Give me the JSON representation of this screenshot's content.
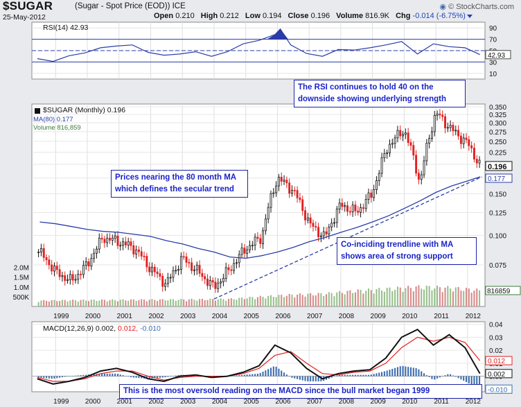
{
  "header": {
    "symbol": "$SUGAR",
    "description": "(Sugar - Spot Price (EOD)) ICE",
    "date": "25-May-2012",
    "brand": "© StockCharts.com",
    "open_label": "Open",
    "open": "0.210",
    "high_label": "High",
    "high": "0.212",
    "low_label": "Low",
    "low": "0.194",
    "close_label": "Close",
    "close": "0.196",
    "volume_label": "Volume",
    "volume": "816.9K",
    "chg_label": "Chg",
    "chg": "-0.014 (-6.75%)"
  },
  "legends": {
    "rsi": "RSI(14) 42.93",
    "price": "$SUGAR (Monthly) 0.196",
    "ma": "MA(80) 0.177",
    "volume": "Volume 816,859",
    "macd_name": "MACD(12,26,9)",
    "macd_v1": "0.002,",
    "macd_v2": "0.012,",
    "macd_v3": "-0.010"
  },
  "annotations": {
    "rsi_note": "The RSI continues to hold 40 on the downside showing underlying strength",
    "ma_note": "Prices nearing the 80 month MA which defines the secular trend",
    "support_note": "Co-inciding trendline with MA shows area of strong support",
    "macd_note": "This is the most oversold reading on the MACD since the bull market began 1999"
  },
  "colors": {
    "up": "#111111",
    "down": "#e02020",
    "ma": "#2a3ca8",
    "rsi_fill": "#2a3ca8",
    "vol_up": "#98c08c",
    "vol_down": "#d88a8a",
    "macd": "#111111",
    "signal": "#e02020",
    "hist": "#3b6db0",
    "note_border": "#1a23a8"
  },
  "chart_data": [
    {
      "type": "line",
      "name": "RSI(14)",
      "ylim": [
        0,
        100
      ],
      "yticks": [
        "90",
        "70",
        "50",
        "30",
        "10"
      ],
      "reference_lines": [
        70,
        50,
        30
      ],
      "last_value_label": "42.93",
      "x": [
        1998.42,
        1998.92,
        1999.42,
        1999.92,
        2000.42,
        2000.92,
        2001.42,
        2001.92,
        2002.42,
        2002.92,
        2003.42,
        2003.92,
        2004.42,
        2004.92,
        2005.42,
        2005.92,
        2006.09,
        2006.42,
        2006.92,
        2007.42,
        2007.92,
        2008.42,
        2008.92,
        2009.42,
        2009.92,
        2010.42,
        2010.92,
        2011.42,
        2011.92,
        2012.39
      ],
      "values": [
        36,
        31,
        41,
        46,
        55,
        58,
        60,
        47,
        42,
        44,
        48,
        40,
        48,
        62,
        68,
        78,
        88,
        60,
        45,
        40,
        52,
        51,
        55,
        60,
        66,
        44,
        62,
        57,
        55,
        43
      ]
    },
    {
      "type": "candlestick",
      "name": "$SUGAR (Monthly)",
      "scale": "log",
      "ylim": [
        0.05,
        0.36
      ],
      "yticks": [
        "0.350",
        "0.325",
        "0.300",
        "0.275",
        "0.250",
        "0.225",
        "0.200",
        "0.175",
        "0.150",
        "0.125",
        "0.100",
        "0.075"
      ],
      "last_close_label": "0.196",
      "ma_last_label": "0.177",
      "x": [
        1998.5,
        1999.0,
        1999.5,
        2000.0,
        2000.5,
        2001.0,
        2001.5,
        2002.0,
        2002.5,
        2003.0,
        2003.5,
        2004.0,
        2004.5,
        2005.0,
        2005.5,
        2006.0,
        2006.5,
        2007.0,
        2007.5,
        2008.0,
        2008.5,
        2009.0,
        2009.5,
        2010.0,
        2010.5,
        2011.0,
        2011.5,
        2012.0,
        2012.4
      ],
      "close": [
        0.085,
        0.07,
        0.064,
        0.075,
        0.098,
        0.094,
        0.088,
        0.072,
        0.062,
        0.08,
        0.07,
        0.06,
        0.072,
        0.088,
        0.098,
        0.175,
        0.155,
        0.112,
        0.098,
        0.135,
        0.125,
        0.15,
        0.24,
        0.28,
        0.165,
        0.33,
        0.28,
        0.245,
        0.196
      ],
      "ma80": [
        0.114,
        0.112,
        0.109,
        0.106,
        0.104,
        0.103,
        0.101,
        0.099,
        0.095,
        0.092,
        0.088,
        0.085,
        0.081,
        0.08,
        0.082,
        0.085,
        0.089,
        0.094,
        0.098,
        0.103,
        0.108,
        0.114,
        0.121,
        0.13,
        0.14,
        0.152,
        0.162,
        0.17,
        0.177
      ],
      "trendline": {
        "x": [
          2004.0,
          2012.45
        ],
        "y": [
          0.052,
          0.177
        ]
      }
    },
    {
      "type": "bar",
      "name": "Volume",
      "yticks": [
        "2.0M",
        "1.5M",
        "1.0M",
        "500K"
      ],
      "last_value_label": "816859",
      "x": [
        1998.5,
        1999.5,
        2000.5,
        2001.5,
        2002.5,
        2003.5,
        2004.5,
        2005.5,
        2006.5,
        2007.5,
        2008.5,
        2009.5,
        2010.5,
        2011.5,
        2012.4
      ],
      "values": [
        300000,
        320000,
        330000,
        340000,
        350000,
        360000,
        380000,
        500000,
        600000,
        650000,
        800000,
        900000,
        1000000,
        950000,
        816859
      ]
    },
    {
      "type": "line",
      "name": "MACD(12,26,9)",
      "ylim": [
        -0.012,
        0.042
      ],
      "yticks": [
        "0.04",
        "0.03",
        "0.02",
        "0.01",
        "0.00"
      ],
      "last_value_labels": [
        "0.012",
        "0.002",
        "-0.010"
      ],
      "x": [
        1998.42,
        1998.92,
        1999.42,
        1999.92,
        2000.42,
        2000.92,
        2001.42,
        2001.92,
        2002.42,
        2002.92,
        2003.42,
        2003.92,
        2004.42,
        2004.92,
        2005.42,
        2005.92,
        2006.42,
        2006.92,
        2007.42,
        2007.92,
        2008.42,
        2008.92,
        2009.42,
        2009.92,
        2010.42,
        2010.92,
        2011.42,
        2011.92,
        2012.39
      ],
      "macd": [
        -0.002,
        -0.006,
        -0.004,
        -0.001,
        0.004,
        0.006,
        0.003,
        -0.002,
        -0.004,
        0.0,
        0.001,
        -0.001,
        0.0,
        0.003,
        0.008,
        0.024,
        0.018,
        0.006,
        -0.002,
        0.002,
        0.004,
        0.005,
        0.014,
        0.03,
        0.036,
        0.024,
        0.032,
        0.022,
        0.002
      ],
      "signal": [
        -0.001,
        -0.004,
        -0.004,
        -0.002,
        0.002,
        0.004,
        0.004,
        0.0,
        -0.003,
        -0.001,
        0.0,
        0.0,
        0.0,
        0.002,
        0.006,
        0.016,
        0.019,
        0.01,
        0.002,
        0.001,
        0.003,
        0.004,
        0.01,
        0.022,
        0.03,
        0.027,
        0.03,
        0.026,
        0.012
      ],
      "histogram": [
        -0.001,
        -0.002,
        0.0,
        0.001,
        0.002,
        0.002,
        -0.001,
        -0.002,
        -0.001,
        0.001,
        0.001,
        -0.001,
        0.0,
        0.001,
        0.002,
        0.008,
        -0.001,
        -0.004,
        -0.004,
        0.001,
        0.001,
        0.001,
        0.004,
        0.008,
        0.006,
        -0.003,
        0.002,
        -0.004,
        -0.01
      ]
    }
  ],
  "x_axis": {
    "years": [
      "1999",
      "2000",
      "2001",
      "2002",
      "2003",
      "2004",
      "2005",
      "2006",
      "2007",
      "2008",
      "2009",
      "2010",
      "2011",
      "2012"
    ]
  }
}
